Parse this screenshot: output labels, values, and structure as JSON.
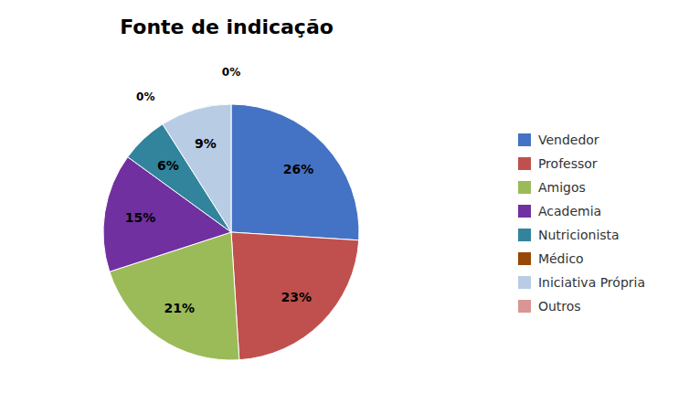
{
  "chart_data": {
    "type": "pie",
    "title": "Fonte de indicação",
    "categories": [
      "Vendedor",
      "Professor",
      "Amigos",
      "Academia",
      "Nutricionista",
      "Médico",
      "Iniciativa Própria",
      "Outros"
    ],
    "values": [
      26,
      23,
      21,
      15,
      6,
      0,
      9,
      0
    ],
    "value_labels": [
      "26%",
      "23%",
      "21%",
      "15%",
      "6%",
      "0%",
      "9%",
      "0%"
    ],
    "colors": [
      "#4472C4",
      "#C0504D",
      "#9BBB59",
      "#7030A0",
      "#31849B",
      "#974706",
      "#B8CCE4",
      "#D99694"
    ],
    "data_labels": true,
    "legend": "right"
  }
}
